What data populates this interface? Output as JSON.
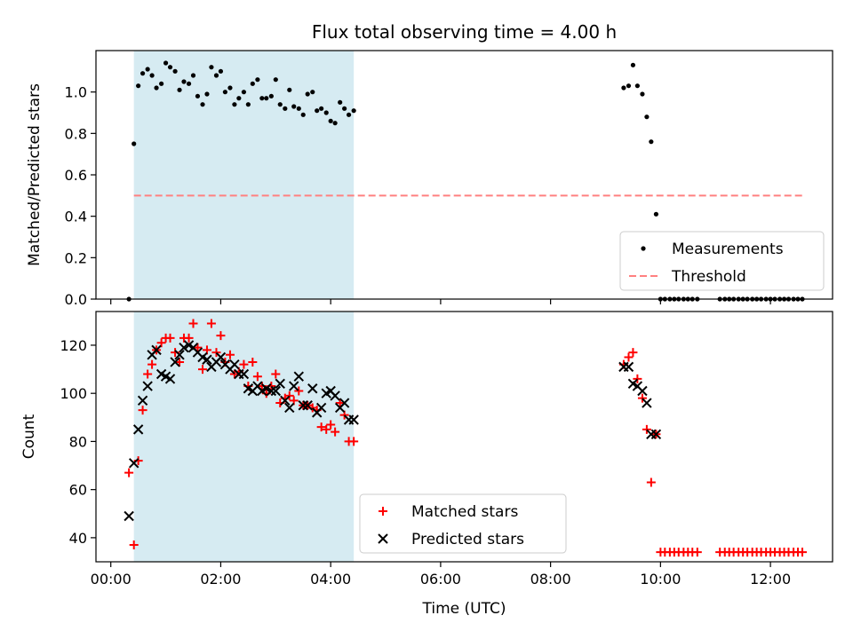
{
  "chart_data": [
    {
      "type": "scatter",
      "title": "Flux total observing time = 4.00 h",
      "xlabel": "",
      "ylabel": "Matched/Predicted stars",
      "xlim": [
        -0.27,
        13.13
      ],
      "ylim": [
        0,
        1.2
      ],
      "x_unit": "hours UTC",
      "y_ticks": [
        0.0,
        0.2,
        0.4,
        0.6,
        0.8,
        1.0
      ],
      "y_tick_labels": [
        "0.0",
        "0.2",
        "0.4",
        "0.6",
        "0.8",
        "1.0"
      ],
      "shaded_region": {
        "x": [
          0.42,
          4.42
        ],
        "color": "#add8e6"
      },
      "legend_position": "lower-right",
      "series": [
        {
          "name": "Measurements",
          "marker": "dot",
          "color": "#000000",
          "x": [
            0.33,
            0.42,
            0.5,
            0.58,
            0.67,
            0.75,
            0.83,
            0.92,
            1.0,
            1.08,
            1.17,
            1.25,
            1.33,
            1.42,
            1.5,
            1.58,
            1.67,
            1.75,
            1.83,
            1.92,
            2.0,
            2.08,
            2.17,
            2.25,
            2.33,
            2.42,
            2.5,
            2.58,
            2.67,
            2.75,
            2.83,
            2.92,
            3.0,
            3.08,
            3.17,
            3.25,
            3.33,
            3.42,
            3.5,
            3.58,
            3.67,
            3.75,
            3.83,
            3.92,
            4.0,
            4.08,
            4.17,
            4.25,
            4.33,
            4.42,
            9.33,
            9.42,
            9.5,
            9.58,
            9.67,
            9.75,
            9.83,
            9.92,
            10.0,
            10.08,
            10.17,
            10.25,
            10.33,
            10.42,
            10.5,
            10.58,
            10.67,
            11.08,
            11.17,
            11.25,
            11.33,
            11.42,
            11.5,
            11.58,
            11.67,
            11.75,
            11.83,
            11.92,
            12.0,
            12.08,
            12.17,
            12.25,
            12.33,
            12.42,
            12.5,
            12.58
          ],
          "y": [
            0.0,
            0.75,
            1.03,
            1.09,
            1.11,
            1.08,
            1.02,
            1.04,
            1.14,
            1.12,
            1.1,
            1.01,
            1.05,
            1.04,
            1.08,
            0.98,
            0.94,
            0.99,
            1.12,
            1.08,
            1.1,
            1.0,
            1.02,
            0.94,
            0.97,
            1.0,
            0.94,
            1.04,
            1.06,
            0.97,
            0.97,
            0.98,
            1.06,
            0.94,
            0.92,
            1.01,
            0.93,
            0.92,
            0.89,
            0.99,
            1.0,
            0.91,
            0.92,
            0.9,
            0.86,
            0.85,
            0.95,
            0.92,
            0.89,
            0.91,
            1.02,
            1.03,
            1.13,
            1.03,
            0.99,
            0.88,
            0.76,
            0.41,
            0.0,
            0.0,
            0.0,
            0.0,
            0.0,
            0.0,
            0.0,
            0.0,
            0.0,
            0.0,
            0.0,
            0.0,
            0.0,
            0.0,
            0.0,
            0.0,
            0.0,
            0.0,
            0.0,
            0.0,
            0.0,
            0.0,
            0.0,
            0.0,
            0.0,
            0.0,
            0.0,
            0.0
          ]
        },
        {
          "name": "Threshold",
          "type": "line",
          "style": "dashed",
          "color": "#ff8080",
          "x": [
            0.42,
            12.58
          ],
          "y": [
            0.5,
            0.5
          ]
        }
      ]
    },
    {
      "type": "scatter",
      "title": "",
      "xlabel": "Time (UTC)",
      "ylabel": "Count",
      "xlim": [
        -0.27,
        13.13
      ],
      "ylim": [
        30,
        134
      ],
      "x_unit": "hours UTC",
      "x_ticks": [
        0,
        2,
        4,
        6,
        8,
        10,
        12
      ],
      "x_tick_labels": [
        "00:00",
        "02:00",
        "04:00",
        "06:00",
        "08:00",
        "10:00",
        "12:00"
      ],
      "y_ticks": [
        40,
        60,
        80,
        100,
        120
      ],
      "y_tick_labels": [
        "40",
        "60",
        "80",
        "100",
        "120"
      ],
      "shaded_region": {
        "x": [
          0.42,
          4.42
        ],
        "color": "#add8e6"
      },
      "legend_position": "lower-center",
      "series": [
        {
          "name": "Matched stars",
          "marker": "plus",
          "color": "#ff0000",
          "x": [
            0.33,
            0.42,
            0.5,
            0.58,
            0.67,
            0.75,
            0.83,
            0.92,
            1.0,
            1.08,
            1.17,
            1.25,
            1.33,
            1.42,
            1.5,
            1.58,
            1.67,
            1.75,
            1.83,
            1.92,
            2.0,
            2.08,
            2.17,
            2.25,
            2.33,
            2.42,
            2.5,
            2.58,
            2.67,
            2.75,
            2.83,
            2.92,
            3.0,
            3.08,
            3.17,
            3.25,
            3.33,
            3.42,
            3.5,
            3.58,
            3.67,
            3.75,
            3.83,
            3.92,
            4.0,
            4.08,
            4.17,
            4.25,
            4.33,
            4.42,
            9.33,
            9.42,
            9.5,
            9.58,
            9.67,
            9.75,
            9.83,
            9.92,
            10.0,
            10.08,
            10.17,
            10.25,
            10.33,
            10.42,
            10.5,
            10.58,
            10.67,
            11.08,
            11.17,
            11.25,
            11.33,
            11.42,
            11.5,
            11.58,
            11.67,
            11.75,
            11.83,
            11.92,
            12.0,
            12.08,
            12.17,
            12.25,
            12.33,
            12.42,
            12.5,
            12.58
          ],
          "y": [
            67,
            37,
            72,
            93,
            108,
            112,
            118,
            121,
            123,
            123,
            117,
            113,
            123,
            123,
            129,
            119,
            110,
            118,
            129,
            117,
            124,
            113,
            116,
            108,
            109,
            112,
            103,
            113,
            107,
            103,
            100,
            103,
            108,
            96,
            98,
            99,
            97,
            101,
            95,
            95,
            94,
            93,
            86,
            85,
            87,
            84,
            96,
            91,
            80,
            80,
            112,
            115,
            117,
            106,
            98,
            85,
            63,
            83,
            34,
            34,
            34,
            34,
            34,
            34,
            34,
            34,
            34,
            34,
            34,
            34,
            34,
            34,
            34,
            34,
            34,
            34,
            34,
            34,
            34,
            34,
            34,
            34,
            34,
            34,
            34,
            34
          ]
        },
        {
          "name": "Predicted stars",
          "marker": "x",
          "color": "#000000",
          "x": [
            0.33,
            0.42,
            0.5,
            0.58,
            0.67,
            0.75,
            0.83,
            0.92,
            1.0,
            1.08,
            1.17,
            1.25,
            1.33,
            1.42,
            1.5,
            1.58,
            1.67,
            1.75,
            1.83,
            1.92,
            2.0,
            2.08,
            2.17,
            2.25,
            2.33,
            2.42,
            2.5,
            2.58,
            2.67,
            2.75,
            2.83,
            2.92,
            3.0,
            3.08,
            3.17,
            3.25,
            3.33,
            3.42,
            3.5,
            3.58,
            3.67,
            3.75,
            3.83,
            3.92,
            4.0,
            4.08,
            4.17,
            4.25,
            4.33,
            4.42,
            9.33,
            9.42,
            9.5,
            9.58,
            9.67,
            9.75,
            9.83,
            9.92
          ],
          "y": [
            49,
            71,
            85,
            97,
            103,
            116,
            118,
            108,
            107,
            106,
            113,
            116,
            119,
            120,
            119,
            117,
            115,
            114,
            111,
            113,
            115,
            112,
            110,
            112,
            108,
            108,
            102,
            101,
            103,
            101,
            102,
            101,
            101,
            104,
            97,
            94,
            103,
            107,
            95,
            95,
            102,
            92,
            94,
            100,
            101,
            99,
            94,
            96,
            89,
            89,
            111,
            111,
            104,
            103,
            101,
            96,
            83,
            83
          ]
        }
      ]
    }
  ]
}
